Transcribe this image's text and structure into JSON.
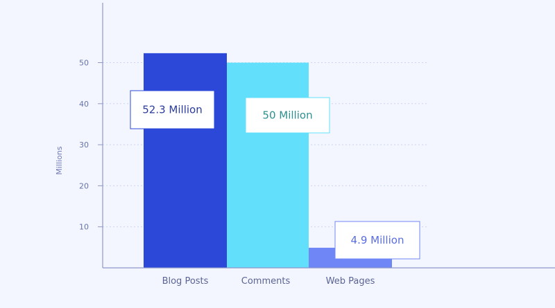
{
  "chart_data": {
    "type": "bar",
    "categories": [
      "Blog Posts",
      "Comments",
      "Web Pages"
    ],
    "values": [
      52.3,
      50,
      4.9
    ],
    "data_labels": [
      "52.3 Million",
      "50 Million",
      "4.9 Million"
    ],
    "bar_colors": [
      "#2c48d8",
      "#62e0fb",
      "#6f87f6"
    ],
    "label_colors": [
      "#2a3a9e",
      "#2e8f8f",
      "#5a6de0"
    ],
    "label_border_colors": [
      "#2c48d8",
      "#62e0fb",
      "#6f87f6"
    ],
    "ylabel": "Millions",
    "xlabel": "",
    "ylim": [
      0,
      60
    ],
    "yticks": [
      10,
      20,
      30,
      40,
      50
    ],
    "grid": true
  }
}
